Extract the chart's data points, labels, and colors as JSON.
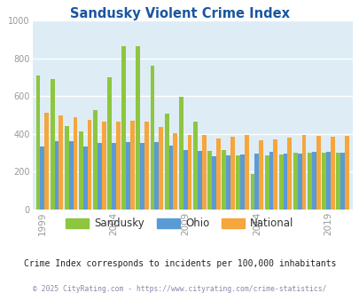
{
  "title": "Sandusky Violent Crime Index",
  "subtitle": "Crime Index corresponds to incidents per 100,000 inhabitants",
  "footer": "© 2025 CityRating.com - https://www.cityrating.com/crime-statistics/",
  "years": [
    1999,
    2000,
    2001,
    2002,
    2003,
    2004,
    2005,
    2006,
    2007,
    2008,
    2009,
    2010,
    2011,
    2012,
    2013,
    2014,
    2015,
    2016,
    2017,
    2018,
    2019,
    2020
  ],
  "sandusky": [
    710,
    690,
    440,
    415,
    525,
    700,
    865,
    865,
    760,
    505,
    595,
    465,
    310,
    315,
    285,
    190,
    285,
    290,
    300,
    300,
    300,
    300
  ],
  "ohio": [
    335,
    360,
    360,
    335,
    350,
    350,
    355,
    350,
    355,
    340,
    315,
    310,
    280,
    285,
    290,
    295,
    305,
    295,
    295,
    305,
    305,
    300
  ],
  "national": [
    510,
    500,
    490,
    475,
    465,
    465,
    470,
    465,
    435,
    405,
    395,
    395,
    375,
    385,
    395,
    365,
    370,
    380,
    395,
    390,
    385,
    390
  ],
  "colors": {
    "sandusky": "#8dc63f",
    "ohio": "#5b9bd5",
    "national": "#f5a63d"
  },
  "ylim": [
    0,
    1000
  ],
  "yticks": [
    0,
    200,
    400,
    600,
    800,
    1000
  ],
  "bg_color": "#deedf5",
  "title_color": "#1a56a0",
  "subtitle_color": "#222222",
  "footer_color": "#8888aa",
  "tick_color": "#999999",
  "grid_color": "#ffffff",
  "legend_labels": [
    "Sandusky",
    "Ohio",
    "National"
  ],
  "xtick_years": [
    1999,
    2004,
    2009,
    2014,
    2019
  ]
}
